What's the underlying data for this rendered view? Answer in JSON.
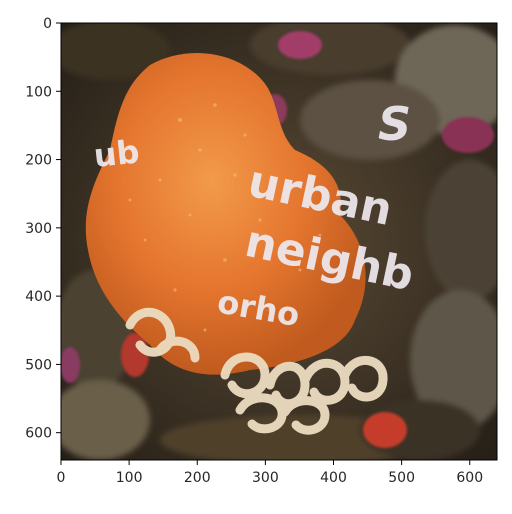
{
  "axes": {
    "x_ticks": [
      {
        "value": 0,
        "label": "0"
      },
      {
        "value": 100,
        "label": "100"
      },
      {
        "value": 200,
        "label": "200"
      },
      {
        "value": 300,
        "label": "300"
      },
      {
        "value": 400,
        "label": "400"
      },
      {
        "value": 500,
        "label": "500"
      },
      {
        "value": 600,
        "label": "600"
      }
    ],
    "y_ticks": [
      {
        "value": 0,
        "label": "0"
      },
      {
        "value": 100,
        "label": "100"
      },
      {
        "value": 200,
        "label": "200"
      },
      {
        "value": 300,
        "label": "300"
      },
      {
        "value": 400,
        "label": "400"
      },
      {
        "value": 500,
        "label": "500"
      },
      {
        "value": 600,
        "label": "600"
      }
    ],
    "x_range": [
      0,
      640
    ],
    "y_range": [
      640,
      0
    ]
  },
  "overlay_text": {
    "ub": "ub",
    "s": "S",
    "urban": "urban",
    "neighb": "neighb",
    "orho": "orho"
  },
  "colors": {
    "sponge_orange": "#e5762f",
    "background_dark": "#3a3124",
    "text_overlay": "#eee9ef"
  }
}
